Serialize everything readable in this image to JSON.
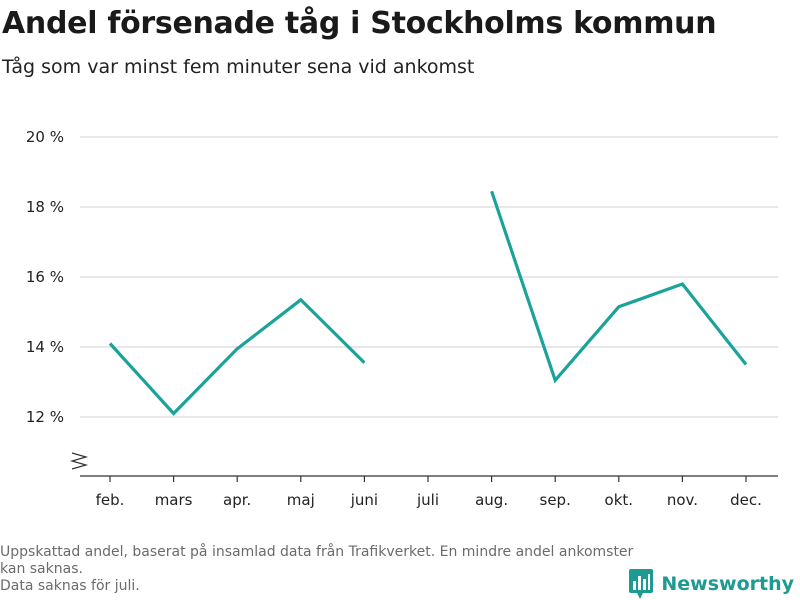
{
  "title": "Andel försenade tåg i Stockholms kommun",
  "subtitle": "Tåg som var minst fem minuter sena vid ankomst",
  "footnote": {
    "line1": "Uppskattad andel, baserat på insamlad data från Trafikverket. En mindre andel ankomster kan saknas.",
    "line2": "Data saknas för juli."
  },
  "brand": {
    "name": "Newsworthy",
    "color": "#1d9a91",
    "icon": "bar-chart-logo-icon"
  },
  "colors": {
    "line": "#1aa39a",
    "grid": "#d9d9d9",
    "axis": "#333333"
  },
  "chart_data": {
    "type": "line",
    "title": "Andel försenade tåg i Stockholms kommun",
    "subtitle": "Tåg som var minst fem minuter sena vid ankomst",
    "categories": [
      "feb.",
      "mars",
      "apr.",
      "maj",
      "juni",
      "juli",
      "aug.",
      "sep.",
      "okt.",
      "nov.",
      "dec."
    ],
    "values": [
      14.1,
      12.1,
      13.95,
      15.35,
      13.55,
      null,
      18.45,
      13.05,
      15.15,
      15.8,
      13.5
    ],
    "y_ticks": [
      12,
      14,
      16,
      18,
      20
    ],
    "y_tick_labels": [
      "12 %",
      "14 %",
      "16 %",
      "18 %",
      "20 %"
    ],
    "ylim": [
      10.8,
      20
    ],
    "y_axis_break": true,
    "grid": true,
    "xlabel": "",
    "ylabel": ""
  }
}
